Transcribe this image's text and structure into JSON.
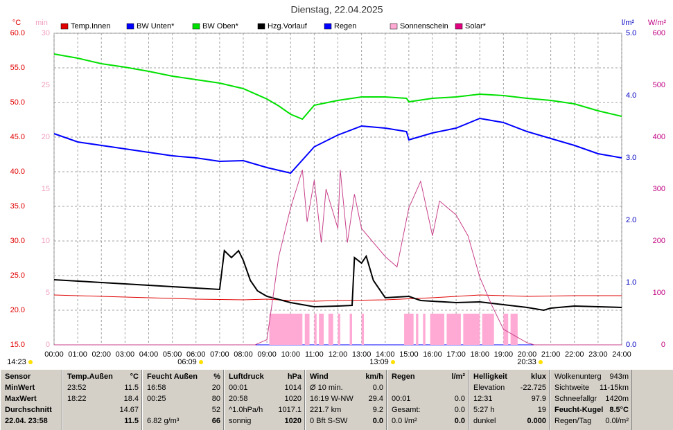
{
  "chart_data": {
    "type": "line",
    "title": "Dienstag, 22.04.2025",
    "units": {
      "y": "°C",
      "min": "min",
      "rain": "l/m²",
      "y2": "W/m²"
    },
    "xlim": [
      0,
      24
    ],
    "xticks": [
      {
        "value": 0,
        "label": "00:00"
      },
      {
        "value": 1,
        "label": "01:00"
      },
      {
        "value": 2,
        "label": "02:00"
      },
      {
        "value": 3,
        "label": "03:00"
      },
      {
        "value": 4,
        "label": "04:00"
      },
      {
        "value": 5,
        "label": "05:00"
      },
      {
        "value": 6,
        "label": "06:00"
      },
      {
        "value": 7,
        "label": "07:00"
      },
      {
        "value": 8,
        "label": "08:00"
      },
      {
        "value": 9,
        "label": "09:00"
      },
      {
        "value": 10,
        "label": "10:00"
      },
      {
        "value": 11,
        "label": "11:00"
      },
      {
        "value": 12,
        "label": "12:00"
      },
      {
        "value": 13,
        "label": "13:00"
      },
      {
        "value": 14,
        "label": "14:00"
      },
      {
        "value": 15,
        "label": "15:00"
      },
      {
        "value": 16,
        "label": "16:00"
      },
      {
        "value": 17,
        "label": "17:00"
      },
      {
        "value": 18,
        "label": "18:00"
      },
      {
        "value": 19,
        "label": "19:00"
      },
      {
        "value": 20,
        "label": "20:00"
      },
      {
        "value": 21,
        "label": "21:00"
      },
      {
        "value": 22,
        "label": "22:00"
      },
      {
        "value": 23,
        "label": "23:00"
      },
      {
        "value": 24,
        "label": "24:00"
      }
    ],
    "ylim": [
      15,
      60
    ],
    "yticks": [
      {
        "value": 15,
        "label": "15.0"
      },
      {
        "value": 20,
        "label": "20.0"
      },
      {
        "value": 25,
        "label": "25.0"
      },
      {
        "value": 30,
        "label": "30.0"
      },
      {
        "value": 35,
        "label": "35.0"
      },
      {
        "value": 40,
        "label": "40.0"
      },
      {
        "value": 45,
        "label": "45.0"
      },
      {
        "value": 50,
        "label": "50.0"
      },
      {
        "value": 55,
        "label": "55.0"
      },
      {
        "value": 60,
        "label": "60.0"
      }
    ],
    "minlim": [
      0,
      30
    ],
    "minticks": [
      0,
      5,
      10,
      15,
      20,
      25,
      30
    ],
    "rainlim": [
      0,
      5
    ],
    "rainticks": [
      {
        "value": 0,
        "label": "0.0"
      },
      {
        "value": 1,
        "label": "1.0"
      },
      {
        "value": 2,
        "label": "2.0"
      },
      {
        "value": 3,
        "label": "3.0"
      },
      {
        "value": 4,
        "label": "4.0"
      },
      {
        "value": 5,
        "label": "5.0"
      }
    ],
    "y2lim": [
      0,
      600
    ],
    "y2ticks": [
      0,
      100,
      200,
      300,
      400,
      500,
      600
    ],
    "grid": true,
    "series": [
      {
        "name": "Temp.Innen",
        "color": "#e00000",
        "axis": "y",
        "x": [
          0,
          2,
          4,
          6,
          8,
          9,
          10,
          11,
          12,
          14,
          16,
          18,
          20,
          22,
          24
        ],
        "values": [
          22.2,
          22.0,
          21.8,
          21.6,
          21.5,
          21.6,
          21.4,
          21.3,
          21.4,
          21.5,
          21.8,
          22.2,
          22.0,
          22.1,
          22.1
        ]
      },
      {
        "name": "BW Unten*",
        "color": "#0000ff",
        "axis": "y",
        "x": [
          0,
          1,
          2,
          3,
          4,
          5,
          6,
          7,
          8,
          9,
          10,
          11,
          12,
          13,
          14,
          14.9,
          15,
          16,
          17,
          18,
          19,
          20,
          21,
          22,
          23,
          24
        ],
        "values": [
          45.5,
          44.3,
          43.8,
          43.3,
          42.8,
          42.3,
          42.0,
          41.5,
          41.6,
          40.6,
          39.8,
          43.6,
          45.3,
          46.6,
          46.3,
          45.8,
          44.6,
          45.6,
          46.3,
          47.7,
          47.1,
          45.8,
          44.8,
          43.8,
          42.6,
          42.0
        ]
      },
      {
        "name": "BW Oben*",
        "color": "#00e000",
        "axis": "y",
        "x": [
          0,
          1,
          2,
          3,
          4,
          5,
          6,
          7,
          8,
          9,
          9.5,
          10,
          10.5,
          11,
          12,
          13,
          14,
          14.9,
          15,
          16,
          17,
          18,
          19,
          20,
          21,
          22,
          23,
          24
        ],
        "values": [
          57.0,
          56.4,
          55.6,
          55.1,
          54.5,
          53.8,
          53.3,
          52.8,
          52.0,
          50.5,
          49.5,
          48.3,
          47.6,
          49.6,
          50.3,
          50.8,
          50.8,
          50.6,
          50.1,
          50.6,
          50.8,
          51.2,
          51.0,
          50.6,
          50.3,
          49.8,
          48.8,
          48.0
        ]
      },
      {
        "name": "Hzg.Vorlauf",
        "color": "#000000",
        "axis": "y",
        "x": [
          0,
          3,
          6,
          7,
          7.2,
          7.5,
          7.8,
          8,
          8.3,
          8.6,
          9,
          10,
          11,
          12,
          12.6,
          12.7,
          13,
          13.2,
          13.5,
          14,
          15,
          15.5,
          17,
          18,
          19,
          20,
          20.7,
          21,
          22,
          24
        ],
        "values": [
          24.4,
          23.8,
          23.2,
          23.0,
          28.6,
          27.6,
          28.6,
          27.2,
          24.3,
          22.8,
          22.0,
          21.1,
          20.5,
          20.6,
          20.7,
          27.6,
          26.8,
          27.8,
          24.3,
          21.8,
          22.0,
          21.4,
          21.1,
          21.2,
          20.8,
          20.4,
          20.0,
          20.3,
          20.6,
          20.4
        ]
      },
      {
        "name": "Regen",
        "color": "#0000ff",
        "axis": "rain",
        "x": [
          0,
          24
        ],
        "values": [
          0,
          0
        ]
      },
      {
        "name": "Sonnenschein",
        "color": "#ffaad4",
        "axis": "min",
        "kind": "bars",
        "bins": [
          9.1,
          10.5,
          10.6,
          10.8,
          11.0,
          11.1,
          11.2,
          11.4,
          11.6,
          11.8,
          12.0,
          12.1,
          12.5,
          12.6,
          13.0,
          13.1,
          14.8,
          15.2,
          15.3,
          15.4,
          15.6,
          15.7,
          15.9,
          16.5,
          16.6,
          17.2,
          17.3,
          18.0,
          18.1,
          18.6,
          19.0,
          19.2,
          19.3,
          19.6
        ],
        "values": [
          3,
          0,
          3,
          0,
          3,
          0,
          3,
          0,
          3,
          0,
          3,
          0,
          3,
          0,
          3,
          0,
          3,
          0,
          3,
          0,
          3,
          0,
          3,
          0,
          3,
          0,
          3,
          0,
          3,
          0,
          3,
          0,
          3
        ]
      },
      {
        "name": "Solar*",
        "color": "#e0007f",
        "line_color": "#c8408a",
        "axis": "y2",
        "x": [
          0,
          8.5,
          9,
          9.5,
          10,
          10.5,
          10.7,
          11,
          11.3,
          11.5,
          12,
          12.1,
          12.4,
          12.7,
          13,
          14,
          14.5,
          15,
          15.5,
          16,
          16.3,
          17,
          17.5,
          18,
          18.5,
          19,
          19.5,
          20,
          20.3,
          24
        ],
        "values": [
          0,
          0,
          10,
          170,
          264,
          337,
          237,
          317,
          197,
          300,
          224,
          337,
          197,
          290,
          224,
          170,
          150,
          264,
          315,
          210,
          277,
          250,
          210,
          130,
          77,
          30,
          17,
          4,
          0,
          0
        ]
      }
    ],
    "markers": [
      "14:23",
      "06:09",
      "13:09",
      "20:33"
    ]
  },
  "table": {
    "columns": [
      {
        "header": "Sensor",
        "unit": "",
        "rows": [
          [
            "MinWert",
            ""
          ],
          [
            "MaxWert",
            ""
          ],
          [
            "Durchschnitt",
            ""
          ],
          [
            "22.04. 23:58",
            ""
          ]
        ]
      },
      {
        "header": "Temp.Außen",
        "unit": "°C",
        "rows": [
          [
            "23:52",
            "11.5"
          ],
          [
            "18:22",
            "18.4"
          ],
          [
            "",
            "14.67"
          ],
          [
            "",
            "11.5"
          ]
        ]
      },
      {
        "header": "Feucht Außen",
        "unit": "%",
        "rows": [
          [
            "16:58",
            "20"
          ],
          [
            "00:25",
            "80"
          ],
          [
            "",
            "52"
          ],
          [
            "6.82 g/m³",
            "66"
          ]
        ]
      },
      {
        "header": "Luftdruck",
        "unit": "hPa",
        "rows": [
          [
            "00:01",
            "1014"
          ],
          [
            "20:58",
            "1020"
          ],
          [
            "^1.0hPa/h",
            "1017.1"
          ],
          [
            "sonnig",
            "1020"
          ]
        ]
      },
      {
        "header": "Wind",
        "unit": "km/h",
        "rows": [
          [
            "Ø 10 min.",
            "0.0"
          ],
          [
            "16:19  W-NW",
            "29.4"
          ],
          [
            "221.7 km",
            "9.2"
          ],
          [
            "0 Bft S-SW",
            "0.0"
          ]
        ]
      },
      {
        "header": "Regen",
        "unit": "l/m²",
        "rows": [
          [
            "",
            ""
          ],
          [
            "00:01",
            "0.0"
          ],
          [
            "Gesamt:",
            "0.0"
          ],
          [
            "0.0 l/m²",
            "0.0"
          ]
        ]
      },
      {
        "header": "Helligkeit",
        "unit": "klux",
        "rows": [
          [
            "Elevation",
            "-22.725"
          ],
          [
            "12:31",
            "97.9"
          ],
          [
            "5:27 h",
            "19"
          ],
          [
            "dunkel",
            "0.000"
          ]
        ]
      },
      {
        "header": "",
        "unit": "",
        "rows": [
          [
            "Wolkenunterg",
            "943m"
          ],
          [
            "Sichtweite",
            "11-15km"
          ],
          [
            "Schneefallgr",
            "1420m"
          ],
          [
            "Feucht-Kugel",
            "8.5°C"
          ],
          [
            "Regen/Tag",
            "0.0l/m²"
          ]
        ]
      }
    ]
  }
}
